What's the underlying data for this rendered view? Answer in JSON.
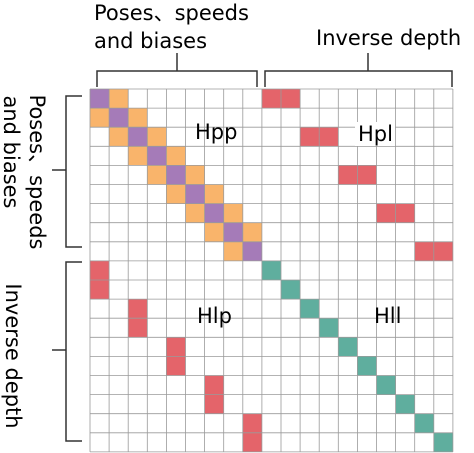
{
  "labels": {
    "top_left_line1": "Poses、speeds",
    "top_left_line2": "and  biases",
    "top_right": "Inverse depth",
    "left_top_line1": "Poses、speeds",
    "left_top_line2": "and  biases",
    "left_bottom": "Inverse depth"
  },
  "blocks": {
    "hpp": "Hpp",
    "hpl": "Hpl",
    "hlp": "Hlp",
    "hll": "Hll"
  },
  "colors": {
    "orange": "#F9B46B",
    "purple": "#A57BB8",
    "red": "#E4646A",
    "teal": "#5FAE9E",
    "grid": "#9a9a9a",
    "bracket": "#333333"
  },
  "grid": {
    "rows": 19,
    "cols": 19
  }
}
